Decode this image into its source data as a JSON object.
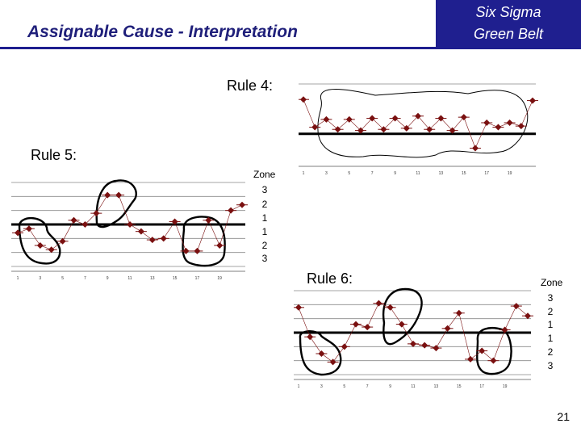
{
  "header": {
    "title": "Assignable Cause - Interpretation",
    "brand_line1": "Six Sigma",
    "brand_line2": "Green Belt"
  },
  "rules": {
    "rule4": "Rule 4:",
    "rule5": "Rule 5:",
    "rule6": "Rule 6:"
  },
  "zone": {
    "label": "Zone",
    "levels": [
      "3",
      "2",
      "1",
      "1",
      "2",
      "3"
    ]
  },
  "page_number": "21",
  "colors": {
    "brand": "#1f1f8f",
    "marker": "#7a1010"
  },
  "chart_data": [
    {
      "type": "line",
      "name": "rule4",
      "x_ticks": [
        "1",
        "3",
        "5",
        "7",
        "9",
        "11",
        "13",
        "15",
        "17",
        "19"
      ],
      "values": [
        3.1,
        0.6,
        1.3,
        0.4,
        1.3,
        0.3,
        1.4,
        0.4,
        1.4,
        0.5,
        1.6,
        0.4,
        1.4,
        0.3,
        1.5,
        -1.3,
        1.0,
        0.6,
        1.0,
        0.7,
        3.0
      ],
      "center": 0.0,
      "ylim": [
        -2.5,
        4.5
      ],
      "annotation": "loop around alternating points"
    },
    {
      "type": "line",
      "name": "rule5",
      "x_ticks": [
        "1",
        "3",
        "5",
        "7",
        "9",
        "11",
        "13",
        "15",
        "17",
        "19"
      ],
      "values": [
        -0.6,
        -0.3,
        -1.5,
        -1.8,
        -1.2,
        0.3,
        0.0,
        0.8,
        2.1,
        2.1,
        0.0,
        -0.5,
        -1.1,
        -1.0,
        0.2,
        -1.9,
        -1.9,
        0.3,
        -1.5,
        1.0,
        1.4
      ],
      "center": 0.0,
      "ylim": [
        -3,
        3
      ],
      "annotation": "2 of 3 points in zone 2 or beyond"
    },
    {
      "type": "line",
      "name": "rule6",
      "x_ticks": [
        "1",
        "3",
        "5",
        "7",
        "9",
        "11",
        "13",
        "15",
        "17",
        "19"
      ],
      "values": [
        1.8,
        -0.3,
        -1.5,
        -2.1,
        -1.0,
        0.6,
        0.4,
        2.1,
        1.8,
        0.6,
        -0.8,
        -0.9,
        -1.1,
        0.3,
        1.4,
        -1.9,
        -1.3,
        -2.0,
        0.2,
        1.9,
        1.2
      ],
      "center": 0.0,
      "ylim": [
        -3,
        3
      ],
      "annotation": "4 of 5 points in zone 1 or beyond"
    }
  ]
}
